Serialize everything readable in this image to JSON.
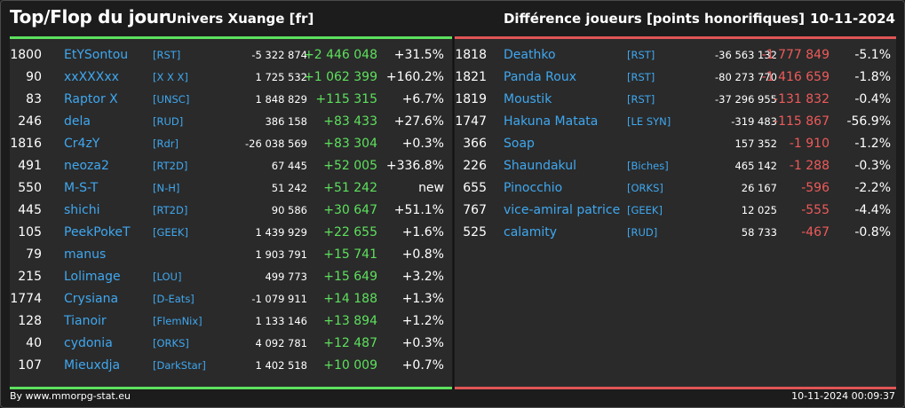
{
  "header": {
    "title": "Top/Flop du jour",
    "universe": "Univers Xuange [fr]",
    "metric": "Différence joueurs [points honorifiques]",
    "date": "10-11-2024"
  },
  "top": [
    {
      "rank": "1800",
      "name": "EtYSontou",
      "guild": "[RST]",
      "points": "-5 322 874",
      "delta": "+2 446 048",
      "pct": "+31.5%"
    },
    {
      "rank": "90",
      "name": "xxXXXxx",
      "guild": "[X X X]",
      "points": "1 725 532",
      "delta": "+1 062 399",
      "pct": "+160.2%"
    },
    {
      "rank": "83",
      "name": "Raptor X",
      "guild": "[UNSC]",
      "points": "1 848 829",
      "delta": "+115 315",
      "pct": "+6.7%"
    },
    {
      "rank": "246",
      "name": "dela",
      "guild": "[RUD]",
      "points": "386 158",
      "delta": "+83 433",
      "pct": "+27.6%"
    },
    {
      "rank": "1816",
      "name": "Cr4zY",
      "guild": "[Rdr]",
      "points": "-26 038 569",
      "delta": "+83 304",
      "pct": "+0.3%"
    },
    {
      "rank": "491",
      "name": "neoza2",
      "guild": "[RT2D]",
      "points": "67 445",
      "delta": "+52 005",
      "pct": "+336.8%"
    },
    {
      "rank": "550",
      "name": "M-S-T",
      "guild": "[N-H]",
      "points": "51 242",
      "delta": "+51 242",
      "pct": "new"
    },
    {
      "rank": "445",
      "name": "shichi",
      "guild": "[RT2D]",
      "points": "90 586",
      "delta": "+30 647",
      "pct": "+51.1%"
    },
    {
      "rank": "105",
      "name": "PeekPokeT",
      "guild": "[GEEK]",
      "points": "1 439 929",
      "delta": "+22 655",
      "pct": "+1.6%"
    },
    {
      "rank": "79",
      "name": "manus",
      "guild": "",
      "points": "1 903 791",
      "delta": "+15 741",
      "pct": "+0.8%"
    },
    {
      "rank": "215",
      "name": "Lolimage",
      "guild": "[LOU]",
      "points": "499 773",
      "delta": "+15 649",
      "pct": "+3.2%"
    },
    {
      "rank": "1774",
      "name": "Crysiana",
      "guild": "[D-Eats]",
      "points": "-1 079 911",
      "delta": "+14 188",
      "pct": "+1.3%"
    },
    {
      "rank": "128",
      "name": "Tianoir",
      "guild": "[FlemNix]",
      "points": "1 133 146",
      "delta": "+13 894",
      "pct": "+1.2%"
    },
    {
      "rank": "40",
      "name": "cydonia",
      "guild": "[ORKS]",
      "points": "4 092 781",
      "delta": "+12 487",
      "pct": "+0.3%"
    },
    {
      "rank": "107",
      "name": "Mieuxdja",
      "guild": "[DarkStar]",
      "points": "1 402 518",
      "delta": "+10 009",
      "pct": "+0.7%"
    }
  ],
  "flop": [
    {
      "rank": "1818",
      "name": "Deathko",
      "guild": "[RST]",
      "points": "-36 563 132",
      "delta": "-1 777 849",
      "pct": "-5.1%"
    },
    {
      "rank": "1821",
      "name": "Panda Roux",
      "guild": "[RST]",
      "points": "-80 273 770",
      "delta": "-1 416 659",
      "pct": "-1.8%"
    },
    {
      "rank": "1819",
      "name": "Moustik",
      "guild": "[RST]",
      "points": "-37 296 955",
      "delta": "-131 832",
      "pct": "-0.4%"
    },
    {
      "rank": "1747",
      "name": "Hakuna Matata",
      "guild": "[LE SYN]",
      "points": "-319 483",
      "delta": "-115 867",
      "pct": "-56.9%"
    },
    {
      "rank": "366",
      "name": "Soap",
      "guild": "",
      "points": "157 352",
      "delta": "-1 910",
      "pct": "-1.2%"
    },
    {
      "rank": "226",
      "name": "Shaundakul",
      "guild": "[Biches]",
      "points": "465 142",
      "delta": "-1 288",
      "pct": "-0.3%"
    },
    {
      "rank": "655",
      "name": "Pinocchio",
      "guild": "[ORKS]",
      "points": "26 167",
      "delta": "-596",
      "pct": "-2.2%"
    },
    {
      "rank": "767",
      "name": "vice-amiral patrice",
      "guild": "[GEEK]",
      "points": "12 025",
      "delta": "-555",
      "pct": "-4.4%"
    },
    {
      "rank": "525",
      "name": "calamity",
      "guild": "[RUD]",
      "points": "58 733",
      "delta": "-467",
      "pct": "-0.8%"
    }
  ],
  "footer": {
    "source": "By www.mmorpg-stat.eu",
    "timestamp": "10-11-2024 00:09:37"
  },
  "colors": {
    "positive": "#5de05d",
    "negative": "#ef5a5a",
    "link": "#3fa8f0"
  }
}
